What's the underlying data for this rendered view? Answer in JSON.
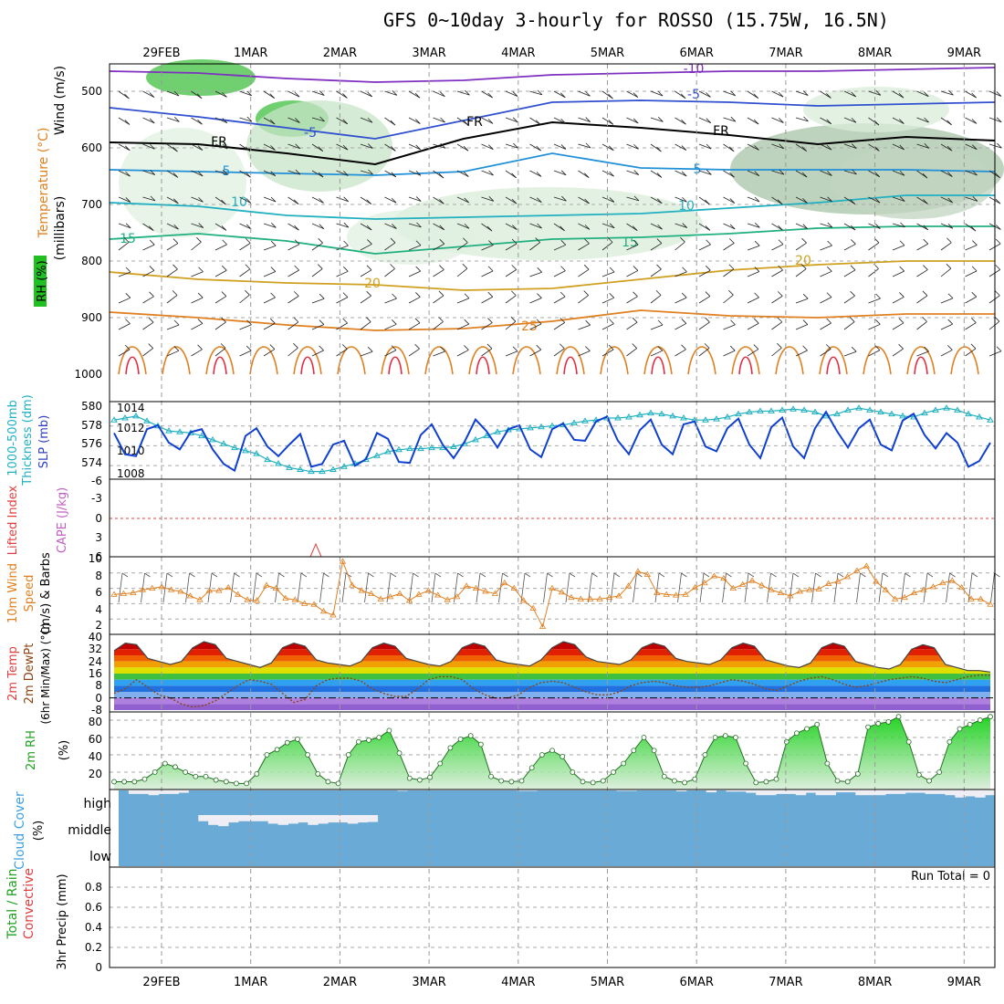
{
  "title": "GFS 0~10day 3-hourly for ROSSO (15.75W, 16.5N)",
  "days": [
    "29FEB",
    "1MAR",
    "2MAR",
    "3MAR",
    "4MAR",
    "5MAR",
    "6MAR",
    "7MAR",
    "8MAR",
    "9MAR"
  ],
  "colors": {
    "thickness": "#20b0c0",
    "slp": "#1040d0",
    "wind": "#e08020",
    "temp": "#e04040",
    "dewpt": "#8b4513",
    "rh": "#20c020",
    "cloud": "#6aaad6",
    "cloudgap": "#eeeef4"
  },
  "panels": {
    "upper": {
      "ylabels": [
        "Wind (m/s)",
        "Temperature (°C)",
        "RH (%)",
        "(millibars)"
      ],
      "yticks": [
        "500",
        "600",
        "700",
        "800",
        "900",
        "1000"
      ],
      "contour_labels": [
        "-10",
        "-5",
        "-5",
        "FR",
        "FR",
        "FR",
        "5",
        "5",
        "10",
        "10",
        "15",
        "15",
        "20",
        "20",
        "25"
      ]
    },
    "slp": {
      "ylabels_left": [
        "1000-500mb",
        "Thickness (dm)"
      ],
      "ylabels_right": "SLP (mb)",
      "left_ticks": [
        "580",
        "578",
        "576",
        "574"
      ],
      "right_ticks": [
        "1014",
        "1012",
        "1010",
        "1008"
      ]
    },
    "cape": {
      "ylabels": [
        "Lifted Index",
        "CAPE (J/kg)"
      ],
      "yticks": [
        "-6",
        "-3",
        "0",
        "3",
        "6"
      ]
    },
    "wind10": {
      "ylabels": [
        "10m Wind",
        "Speed",
        "(m/s) & Barbs"
      ],
      "yticks": [
        "10",
        "8",
        "6",
        "4",
        "2"
      ]
    },
    "temp2m": {
      "ylabels": [
        "2m Temp",
        "2m DewPt",
        "(6hr Min/Max) (°C)"
      ],
      "yticks": [
        "40",
        "32",
        "24",
        "16",
        "8",
        "0",
        "-8"
      ]
    },
    "rh2m": {
      "ylabels": [
        "2m RH",
        "(%)"
      ],
      "yticks": [
        "80",
        "60",
        "40",
        "20"
      ]
    },
    "cloud": {
      "ylabels": [
        "Cloud Cover",
        "(%)"
      ],
      "levels": [
        "high",
        "middle",
        "low"
      ]
    },
    "precip": {
      "ylabels": [
        "Total / Rain",
        "Convective",
        "3hr Precip (mm)"
      ],
      "yticks": [
        "0.8",
        "0.6",
        "0.4",
        "0.2",
        "0"
      ],
      "run_total": "Run Total = 0"
    }
  },
  "chart_data": [
    {
      "type": "line",
      "title": "1000-500mb Thickness / SLP",
      "series": [
        {
          "name": "1000-500mb Thickness (dm)",
          "values": [
            578.6,
            578.8,
            579.0,
            578.5,
            578.0,
            577.5,
            577.4,
            577.3,
            577.0,
            576.6,
            576.2,
            575.8,
            575.5,
            575.2,
            574.6,
            574.2,
            573.8,
            573.6,
            573.4,
            573.4,
            573.6,
            573.9,
            574.2,
            574.6,
            575.0,
            575.4,
            575.6,
            575.7,
            575.7,
            575.8,
            575.8,
            575.9,
            576.2,
            576.6,
            577.0,
            577.4,
            577.6,
            577.7,
            577.8,
            577.9,
            578.0,
            578.1,
            578.3,
            578.5,
            578.6,
            578.8,
            578.8,
            578.9,
            579.1,
            579.3,
            579.2,
            579.0,
            578.8,
            578.6,
            578.6,
            578.7,
            578.9,
            579.2,
            579.4,
            579.5,
            579.5,
            579.6,
            579.7,
            579.6,
            579.4,
            579.0,
            579.2,
            579.6,
            579.8,
            579.6,
            579.4,
            579.2,
            579.0,
            578.9,
            579.3,
            579.6,
            579.8,
            579.6,
            579.2,
            578.9,
            578.6
          ]
        },
        {
          "name": "SLP (mb)",
          "values": [
            1012.2,
            1010.0,
            1009.8,
            1012.6,
            1013.0,
            1011.2,
            1010.5,
            1012.3,
            1012.6,
            1010.5,
            1009.0,
            1008.3,
            1011.9,
            1012.7,
            1010.8,
            1009.8,
            1011.0,
            1012.1,
            1008.7,
            1009.0,
            1011.0,
            1011.4,
            1008.8,
            1009.5,
            1012.2,
            1011.6,
            1009.2,
            1009.1,
            1012.0,
            1013.1,
            1011.0,
            1009.6,
            1011.3,
            1013.6,
            1012.4,
            1010.7,
            1012.6,
            1013.0,
            1010.5,
            1009.7,
            1012.6,
            1013.2,
            1011.5,
            1011.4,
            1013.4,
            1013.9,
            1011.4,
            1010.0,
            1012.5,
            1013.6,
            1011.0,
            1010.0,
            1013.1,
            1013.4,
            1010.8,
            1010.3,
            1012.7,
            1013.7,
            1011.0,
            1009.6,
            1012.8,
            1013.8,
            1010.8,
            1009.6,
            1012.7,
            1014.4,
            1012.4,
            1010.7,
            1012.7,
            1013.6,
            1011.0,
            1010.4,
            1013.5,
            1014.2,
            1012.0,
            1010.6,
            1012.2,
            1011.2,
            1008.7,
            1009.3,
            1011.2
          ]
        }
      ],
      "xlabel": "",
      "ylim_left": [
        573,
        580
      ],
      "ylim_right": [
        1007.6,
        1014.8
      ]
    },
    {
      "type": "line",
      "title": "10m Wind Speed",
      "series": [
        {
          "name": "10m Wind Speed (m/s)",
          "values": [
            5.2,
            5.3,
            5.4,
            5.8,
            6.0,
            6.2,
            5.8,
            5.6,
            5.0,
            4.5,
            5.7,
            5.7,
            6.1,
            5.2,
            4.5,
            4.4,
            6.4,
            6.0,
            4.7,
            4.5,
            4.0,
            3.9,
            3.0,
            2.5,
            9.5,
            6.4,
            5.7,
            5.3,
            4.6,
            4.9,
            5.3,
            4.4,
            5.2,
            5.7,
            5.1,
            4.5,
            4.9,
            6.3,
            6.0,
            5.6,
            5.3,
            6.7,
            6.0,
            4.4,
            3.4,
            1.0,
            6.0,
            5.5,
            4.8,
            4.6,
            4.6,
            4.6,
            4.8,
            5.0,
            6.3,
            8.2,
            7.8,
            5.4,
            5.2,
            5.1,
            5.2,
            6.1,
            6.7,
            7.6,
            7.3,
            6.0,
            6.5,
            7.0,
            6.4,
            5.8,
            5.4,
            5.0,
            5.6,
            5.8,
            5.9,
            6.6,
            6.9,
            7.5,
            8.3,
            8.9,
            6.9,
            5.8,
            4.6,
            4.8,
            5.4,
            5.8,
            6.2,
            6.7,
            7.0,
            6.1,
            4.6,
            4.6,
            3.9
          ]
        }
      ],
      "ylim": [
        0,
        10
      ]
    },
    {
      "type": "area",
      "title": "2m Temp / DewPt",
      "series": [
        {
          "name": "2m Temp (°C)",
          "values": [
            31.0,
            36.0,
            35.0,
            26.0,
            24.0,
            22.0,
            24.0,
            33.0,
            37.0,
            35.0,
            26.0,
            24.0,
            22.0,
            20.0,
            23.0,
            33.0,
            36.0,
            34.0,
            25.0,
            23.0,
            22.0,
            21.0,
            24.0,
            33.0,
            36.0,
            34.0,
            26.0,
            24.0,
            22.0,
            21.0,
            24.0,
            33.0,
            36.0,
            34.0,
            25.0,
            23.0,
            22.0,
            21.0,
            25.0,
            33.0,
            37.0,
            35.0,
            27.0,
            24.0,
            23.0,
            22.0,
            25.0,
            33.0,
            36.0,
            34.0,
            26.0,
            24.0,
            23.0,
            22.0,
            25.0,
            33.0,
            36.0,
            34.0,
            25.0,
            23.0,
            21.0,
            20.0,
            23.0,
            33.0,
            36.0,
            34.0,
            24.0,
            22.0,
            20.0,
            19.0,
            22.0,
            32.0,
            35.0,
            33.0,
            22.0,
            20.0,
            18.0,
            18.0,
            17.0
          ]
        },
        {
          "name": "2m DewPt (°C)",
          "values": [
            3.0,
            6.0,
            12.0,
            7.0,
            2.0,
            0.0,
            -4.0,
            -6.0,
            -5.0,
            -2.0,
            3.0,
            8.0,
            12.0,
            11.0,
            9.0,
            3.0,
            -3.0,
            -1.0,
            8.0,
            12.0,
            13.0,
            13.0,
            11.0,
            6.0,
            3.0,
            1.0,
            1.0,
            6.0,
            12.0,
            14.0,
            14.0,
            12.0,
            6.0,
            2.0,
            0.0,
            0.0,
            2.0,
            7.0,
            10.0,
            11.0,
            10.0,
            7.0,
            4.0,
            2.0,
            2.0,
            4.0,
            8.0,
            10.0,
            11.0,
            10.0,
            8.0,
            7.0,
            7.0,
            8.0,
            10.0,
            12.0,
            11.0,
            9.0,
            6.0,
            5.0,
            8.0,
            11.0,
            13.0,
            14.0,
            12.0,
            9.0,
            7.0,
            8.0,
            10.0,
            12.0,
            13.0,
            14.0,
            13.0,
            11.0,
            10.0,
            12.0,
            14.0,
            15.0,
            15.0
          ]
        }
      ],
      "ylim": [
        -8,
        40
      ]
    },
    {
      "type": "area",
      "title": "2m RH",
      "series": [
        {
          "name": "2m RH (%)",
          "values": [
            9,
            9,
            9,
            12,
            20,
            30,
            26,
            20,
            15,
            15,
            11,
            9,
            7,
            7,
            18,
            40,
            46,
            54,
            58,
            40,
            18,
            9,
            7,
            40,
            55,
            57,
            60,
            68,
            42,
            13,
            11,
            14,
            30,
            48,
            58,
            62,
            52,
            15,
            10,
            9,
            10,
            25,
            40,
            45,
            38,
            20,
            9,
            8,
            10,
            20,
            30,
            45,
            60,
            45,
            15,
            10,
            8,
            12,
            40,
            60,
            62,
            60,
            30,
            8,
            9,
            12,
            55,
            65,
            70,
            75,
            30,
            10,
            9,
            18,
            72,
            76,
            78,
            84,
            55,
            17,
            10,
            20,
            55,
            70,
            75,
            80,
            84
          ]
        }
      ],
      "ylim": [
        0,
        90
      ]
    },
    {
      "type": "table",
      "title": "Cloud Cover",
      "series": [
        {
          "name": "high",
          "values": [
            100,
            85,
            85,
            80,
            85,
            85,
            90,
            100,
            100,
            100,
            100,
            100,
            100,
            100,
            100,
            100,
            100,
            100,
            100,
            100,
            100,
            100,
            100,
            100,
            100,
            100,
            100,
            100,
            98,
            100,
            100,
            100,
            100,
            100,
            100,
            100,
            100,
            100,
            100,
            100,
            98,
            98,
            100,
            100,
            100,
            100,
            100,
            100,
            100,
            100,
            98,
            98,
            100,
            100,
            100,
            100,
            96,
            100,
            100,
            92,
            100,
            95,
            95,
            90,
            80,
            80,
            85,
            85,
            80,
            90,
            80,
            80,
            92,
            92,
            80,
            80,
            80,
            85,
            85,
            90,
            90,
            85,
            85,
            80,
            70,
            75,
            70,
            80
          ]
        },
        {
          "name": "middle",
          "values": [
            100,
            100,
            100,
            100,
            100,
            100,
            100,
            100,
            75,
            60,
            55,
            70,
            75,
            75,
            75,
            65,
            60,
            65,
            70,
            60,
            65,
            70,
            70,
            65,
            70,
            72,
            100,
            100,
            100,
            100,
            100,
            100,
            100,
            100,
            100,
            100,
            100,
            100,
            100,
            100,
            100,
            100,
            100,
            100,
            100,
            100,
            100,
            100,
            100,
            100,
            100,
            100,
            100,
            100,
            100,
            100,
            100,
            100,
            100,
            100,
            100,
            100,
            100,
            100,
            100,
            100,
            100,
            100,
            100,
            100,
            100,
            100,
            100,
            100,
            100,
            100,
            100,
            100,
            100,
            100,
            100,
            100,
            100,
            100,
            100,
            100,
            100,
            100
          ]
        },
        {
          "name": "low",
          "values": [
            100,
            100,
            100,
            100,
            100,
            100,
            100,
            100,
            100,
            100,
            100,
            100,
            100,
            100,
            100,
            100,
            100,
            100,
            100,
            100,
            100,
            100,
            100,
            100,
            100,
            100,
            100,
            100,
            100,
            100,
            100,
            100,
            100,
            100,
            100,
            100,
            100,
            100,
            100,
            100,
            100,
            100,
            100,
            100,
            100,
            100,
            100,
            100,
            100,
            100,
            100,
            100,
            100,
            100,
            100,
            100,
            100,
            100,
            100,
            100,
            100,
            100,
            100,
            100,
            100,
            100,
            100,
            100,
            100,
            100,
            100,
            100,
            100,
            100,
            100,
            100,
            100,
            100,
            100,
            100,
            100,
            100,
            100,
            100,
            100,
            100,
            100,
            100
          ]
        }
      ]
    },
    {
      "type": "bar",
      "title": "3hr Precip",
      "series": [
        {
          "name": "3hr Precip (mm)",
          "values": []
        }
      ],
      "ylim": [
        0,
        0.9
      ]
    }
  ]
}
